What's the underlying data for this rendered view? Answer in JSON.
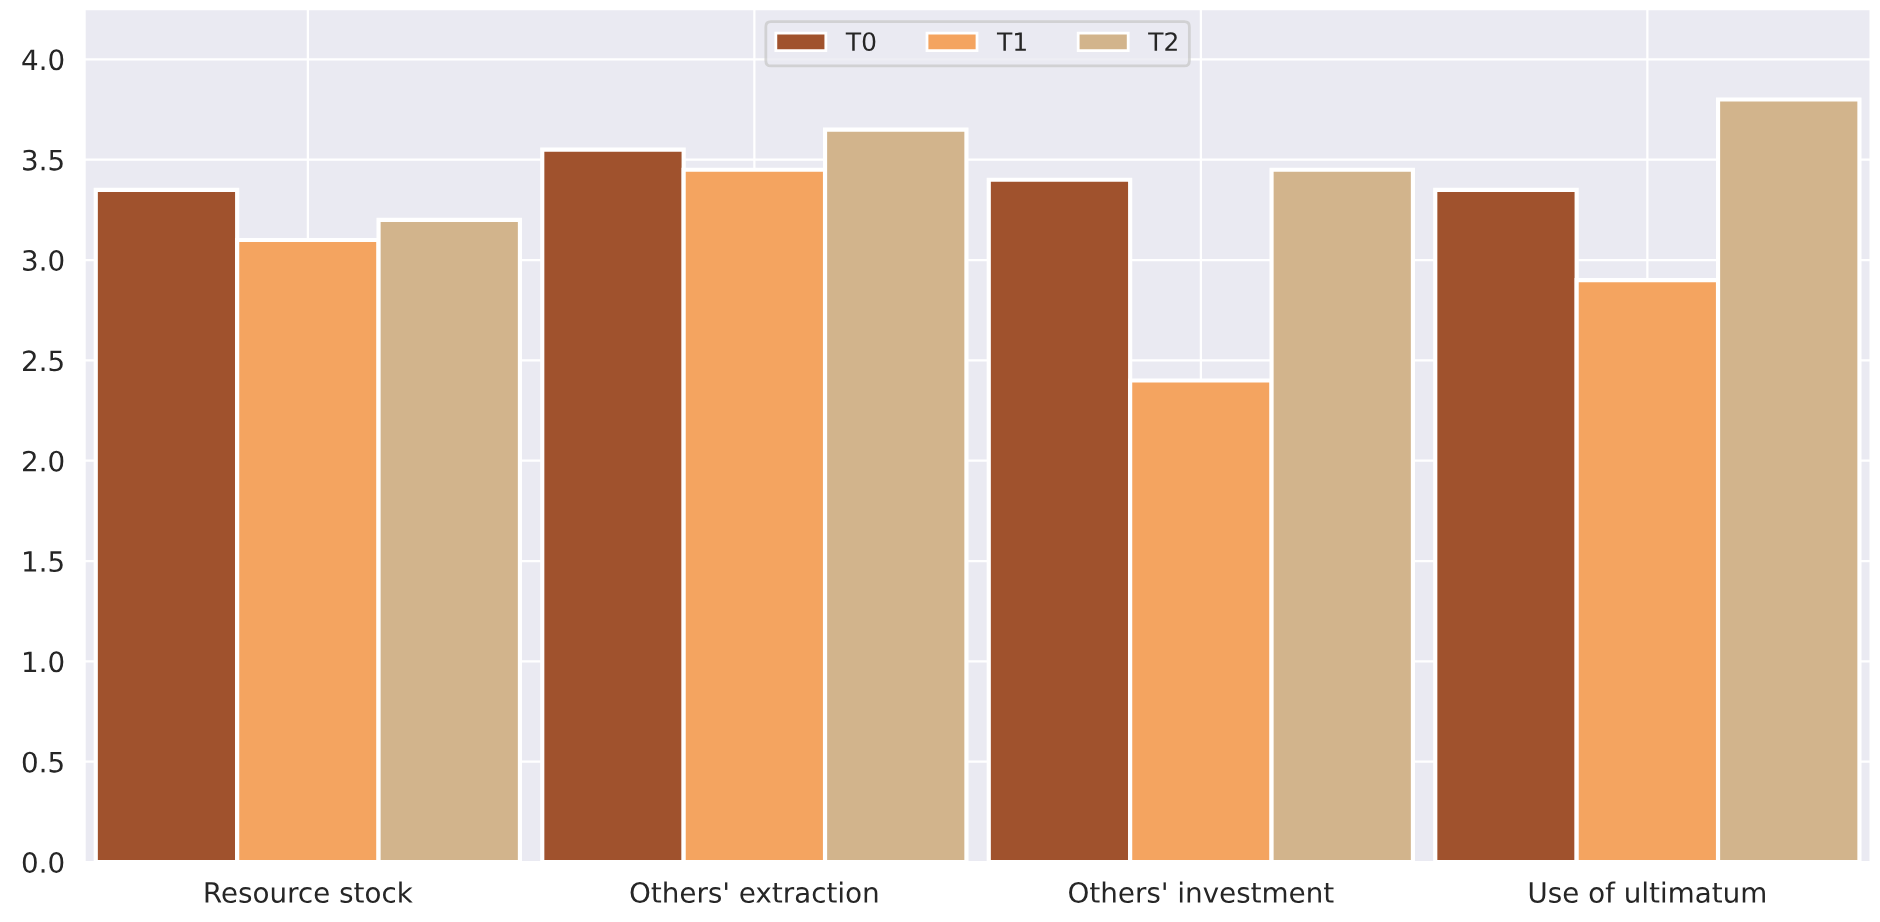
{
  "chart_data": {
    "type": "bar",
    "categories": [
      "Resource stock",
      "Others' extraction",
      "Others' investment",
      "Use of ultimatum"
    ],
    "series": [
      {
        "name": "T0",
        "color": "#a0522d",
        "values": [
          3.35,
          3.55,
          3.4,
          3.35
        ]
      },
      {
        "name": "T1",
        "color": "#f4a460",
        "values": [
          3.1,
          3.45,
          2.4,
          2.9
        ]
      },
      {
        "name": "T2",
        "color": "#d2b48c",
        "values": [
          3.2,
          3.65,
          3.45,
          3.8
        ]
      }
    ],
    "ylim": [
      0,
      4.25
    ],
    "yticks": [
      {
        "value": 0,
        "label": "0.0"
      },
      {
        "value": 0.5,
        "label": "0.5"
      },
      {
        "value": 1,
        "label": "1.0"
      },
      {
        "value": 1.5,
        "label": "1.5"
      },
      {
        "value": 2,
        "label": "2.0"
      },
      {
        "value": 2.5,
        "label": "2.5"
      },
      {
        "value": 3,
        "label": "3.0"
      },
      {
        "value": 3.5,
        "label": "3.5"
      },
      {
        "value": 4,
        "label": "4.0"
      }
    ],
    "grid": true,
    "legend": "top"
  }
}
